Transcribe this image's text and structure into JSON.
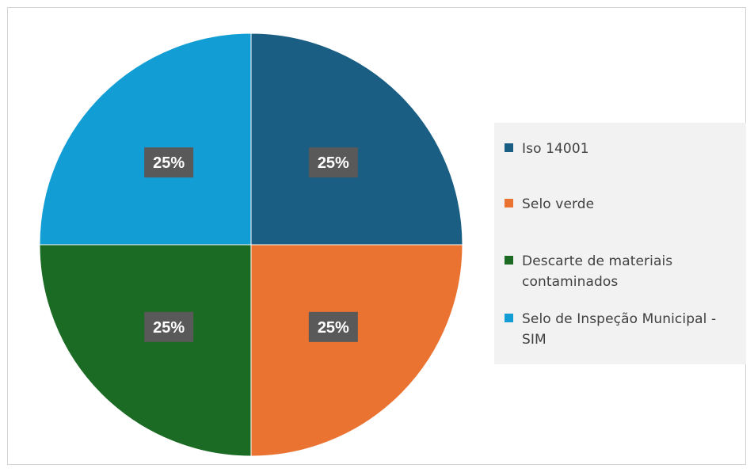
{
  "chart_data": {
    "type": "pie",
    "categories": [
      "Iso 14001",
      "Selo verde",
      "Descarte de materiais contaminados",
      "Selo de Inspeção Municipal - SIM"
    ],
    "values": [
      25,
      25,
      25,
      25
    ],
    "data_labels": [
      "25%",
      "25%",
      "25%",
      "25%"
    ],
    "colors": [
      "#1a5e83",
      "#eb7332",
      "#1b6b24",
      "#129dd5"
    ],
    "legend_placement": "right"
  },
  "legend": {
    "items": [
      {
        "label": "Iso 14001",
        "color": "#1a5e83"
      },
      {
        "label": "Selo verde",
        "color": "#eb7332"
      },
      {
        "label": "Descarte de materiais contaminados",
        "color": "#1b6b24"
      },
      {
        "label": "Selo de Inspeção Municipal - SIM",
        "color": "#129dd5"
      }
    ]
  }
}
